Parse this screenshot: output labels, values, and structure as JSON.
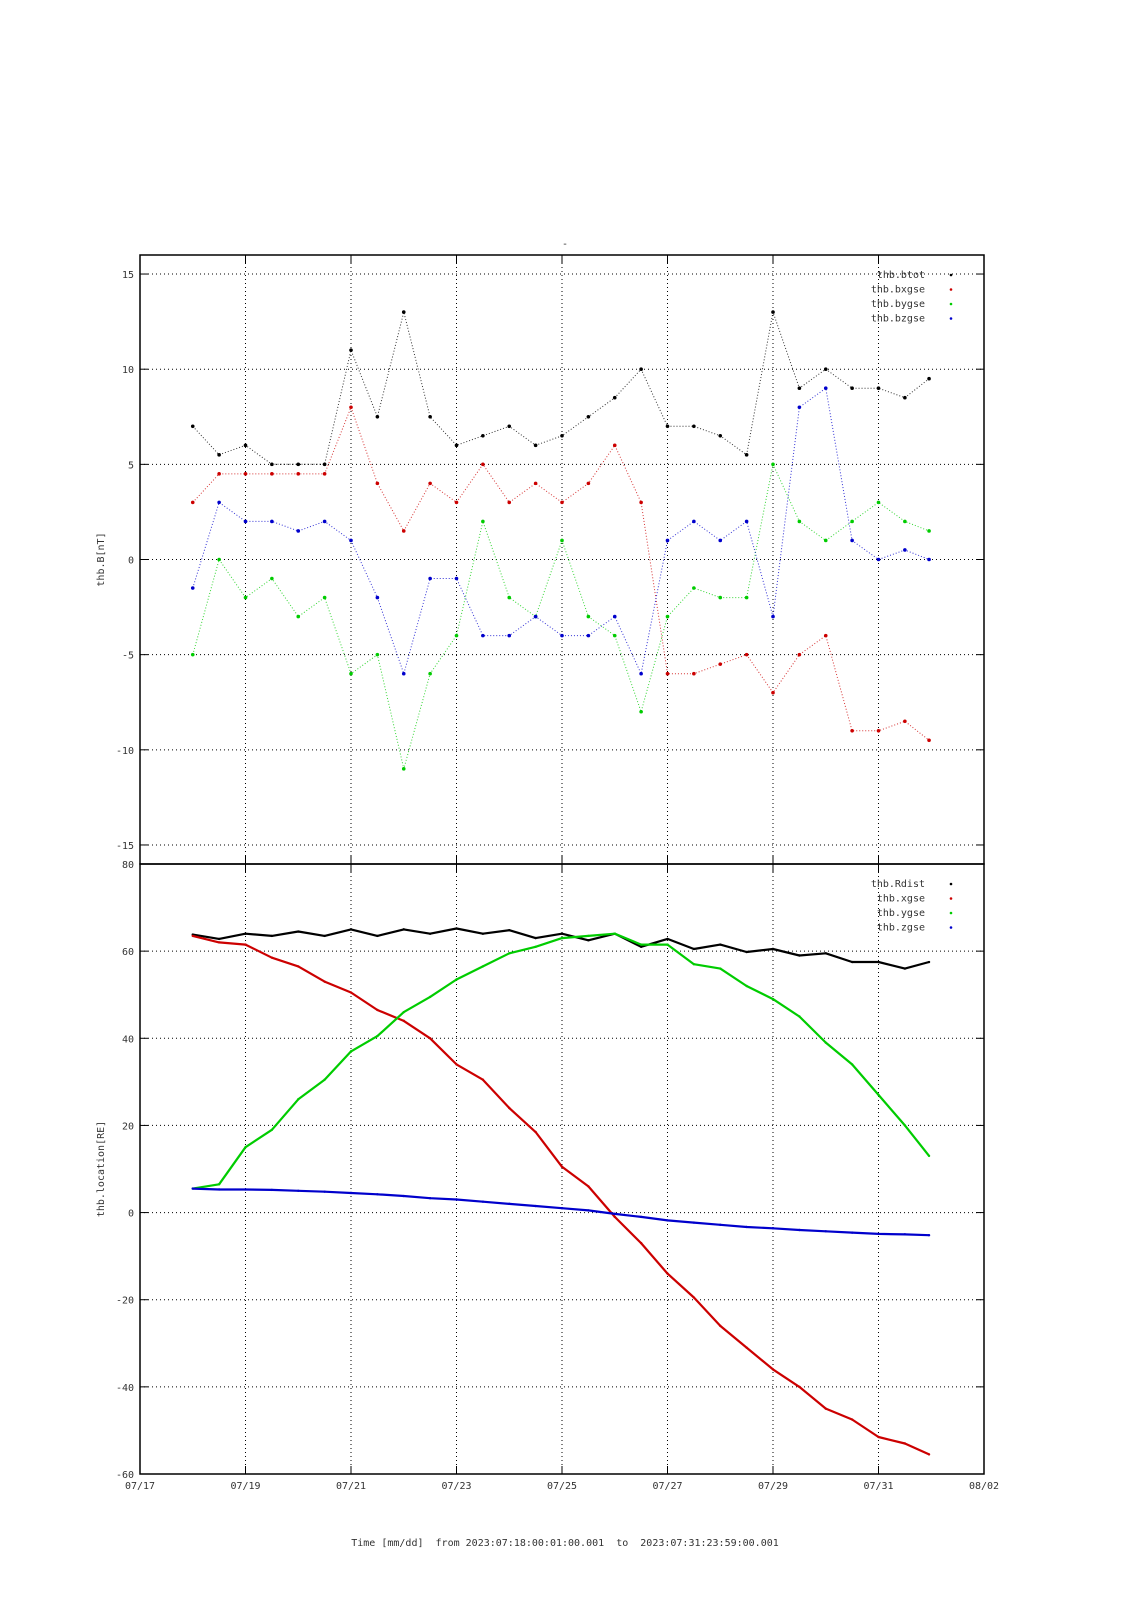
{
  "page_title": "-",
  "footer": {
    "xlabel": "Time [mm/dd]",
    "from_label": "from",
    "from_value": "2023:07:18:00:01:00.001",
    "to_label": "to",
    "to_value": "2023:07:31:23:59:00.001"
  },
  "chart_data": [
    {
      "type": "scatter",
      "ylabel": "thb.B[nT]",
      "ylim": [
        -16,
        16
      ],
      "yticks": [
        15,
        10,
        5,
        0,
        -5,
        -10,
        -15
      ],
      "xlim": [
        "07/17",
        "08/02"
      ],
      "xticks": [
        "07/17",
        "07/19",
        "07/21",
        "07/23",
        "07/25",
        "07/27",
        "07/29",
        "07/31",
        "08/02"
      ],
      "grid": true,
      "legend_position": "top-right",
      "x": [
        "07/18",
        "07/18 12h",
        "07/19",
        "07/19 12h",
        "07/20",
        "07/20 12h",
        "07/21",
        "07/21 12h",
        "07/22",
        "07/22 12h",
        "07/23",
        "07/23 12h",
        "07/24",
        "07/24 12h",
        "07/25",
        "07/25 12h",
        "07/26",
        "07/26 12h",
        "07/27",
        "07/27 12h",
        "07/28",
        "07/28 12h",
        "07/29",
        "07/29 12h",
        "07/30",
        "07/30 12h",
        "07/31",
        "07/31 12h",
        "07/31 23h"
      ],
      "series": [
        {
          "name": "thb.btot",
          "color": "#000000",
          "values": [
            7.0,
            5.5,
            6.0,
            5.0,
            5.0,
            5.0,
            11.0,
            7.5,
            13.0,
            7.5,
            6.0,
            6.5,
            7.0,
            6.0,
            6.5,
            7.5,
            8.5,
            10.0,
            7.0,
            7.0,
            6.5,
            5.5,
            13.0,
            9.0,
            10.0,
            9.0,
            9.0,
            8.5,
            9.5
          ]
        },
        {
          "name": "thb.bxgse",
          "color": "#cc0000",
          "values": [
            3.0,
            4.5,
            4.5,
            4.5,
            4.5,
            4.5,
            8.0,
            4.0,
            1.5,
            4.0,
            3.0,
            5.0,
            3.0,
            4.0,
            3.0,
            4.0,
            6.0,
            3.0,
            -6.0,
            -6.0,
            -5.5,
            -5.0,
            -7.0,
            -5.0,
            -4.0,
            -9.0,
            -9.0,
            -8.5,
            -9.5
          ]
        },
        {
          "name": "thb.bygse",
          "color": "#00cc00",
          "values": [
            -5.0,
            0.0,
            -2.0,
            -1.0,
            -3.0,
            -2.0,
            -6.0,
            -5.0,
            -11.0,
            -6.0,
            -4.0,
            2.0,
            -2.0,
            -3.0,
            1.0,
            -3.0,
            -4.0,
            -8.0,
            -3.0,
            -1.5,
            -2.0,
            -2.0,
            5.0,
            2.0,
            1.0,
            2.0,
            3.0,
            2.0,
            1.5
          ]
        },
        {
          "name": "thb.bzgse",
          "color": "#0000cc",
          "values": [
            -1.5,
            3.0,
            2.0,
            2.0,
            1.5,
            2.0,
            1.0,
            -2.0,
            -6.0,
            -1.0,
            -1.0,
            -4.0,
            -4.0,
            -3.0,
            -4.0,
            -4.0,
            -3.0,
            -6.0,
            1.0,
            2.0,
            1.0,
            2.0,
            -3.0,
            8.0,
            9.0,
            1.0,
            0.0,
            0.5,
            0.0
          ]
        }
      ]
    },
    {
      "type": "line",
      "ylabel": "thb.location[RE]",
      "ylim": [
        -60,
        80
      ],
      "yticks": [
        80,
        60,
        40,
        20,
        0,
        -20,
        -40,
        -60
      ],
      "xlim": [
        "07/17",
        "08/02"
      ],
      "xticks": [
        "07/17",
        "07/19",
        "07/21",
        "07/23",
        "07/25",
        "07/27",
        "07/29",
        "07/31",
        "08/02"
      ],
      "grid": true,
      "legend_position": "top-right",
      "x": [
        "07/18",
        "07/18 12h",
        "07/19",
        "07/19 12h",
        "07/20",
        "07/20 12h",
        "07/21",
        "07/21 12h",
        "07/22",
        "07/22 12h",
        "07/23",
        "07/23 12h",
        "07/24",
        "07/24 12h",
        "07/25",
        "07/25 12h",
        "07/26",
        "07/26 12h",
        "07/27",
        "07/27 12h",
        "07/28",
        "07/28 12h",
        "07/29",
        "07/29 12h",
        "07/30",
        "07/30 12h",
        "07/31",
        "07/31 12h",
        "07/31 23h"
      ],
      "series": [
        {
          "name": "thb.Rdist",
          "color": "#000000",
          "values": [
            63.8,
            62.8,
            64.0,
            63.5,
            64.5,
            63.5,
            65.0,
            63.5,
            65.0,
            64.0,
            65.2,
            64.0,
            64.8,
            63.0,
            64.0,
            62.5,
            64.0,
            61.0,
            62.8,
            60.5,
            61.5,
            59.8,
            60.5,
            59.0,
            59.5,
            57.5,
            57.5,
            56.0,
            57.5
          ]
        },
        {
          "name": "thb.xgse",
          "color": "#cc0000",
          "values": [
            63.5,
            62.0,
            61.5,
            58.5,
            56.5,
            53.0,
            50.5,
            46.5,
            44.0,
            40.0,
            34.0,
            30.5,
            24.0,
            18.5,
            10.5,
            6.0,
            -1.0,
            -7.0,
            -14.0,
            -19.5,
            -26.0,
            -31.0,
            -36.0,
            -40.0,
            -45.0,
            -47.5,
            -51.5,
            -53.0,
            -55.5
          ]
        },
        {
          "name": "thb.ygse",
          "color": "#00cc00",
          "values": [
            5.5,
            6.5,
            15.0,
            19.0,
            26.0,
            30.5,
            37.0,
            40.5,
            46.0,
            49.5,
            53.5,
            56.5,
            59.5,
            61.0,
            63.0,
            63.5,
            64.0,
            61.5,
            61.5,
            57.0,
            56.0,
            52.0,
            49.0,
            45.0,
            39.0,
            34.0,
            27.0,
            20.0,
            13.0
          ]
        },
        {
          "name": "thb.zgse",
          "color": "#0000cc",
          "values": [
            5.5,
            5.3,
            5.3,
            5.2,
            5.0,
            4.8,
            4.5,
            4.2,
            3.8,
            3.3,
            3.0,
            2.5,
            2.0,
            1.5,
            1.0,
            0.5,
            -0.3,
            -1.0,
            -1.8,
            -2.3,
            -2.8,
            -3.3,
            -3.6,
            -4.0,
            -4.3,
            -4.6,
            -4.9,
            -5.0,
            -5.2
          ]
        }
      ]
    }
  ]
}
